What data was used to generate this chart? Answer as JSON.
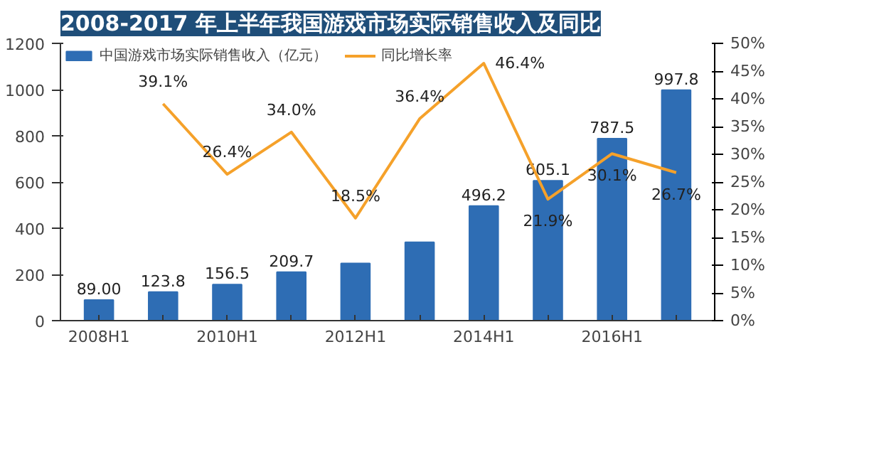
{
  "chart_data": {
    "type": "bar",
    "title": "2008-2017 年上半年我国游戏市场实际销售收入及同比",
    "categories": [
      "2008H1",
      null,
      "2010H1",
      null,
      "2012H1",
      null,
      "2014H1",
      null,
      "2016H1",
      null
    ],
    "series": [
      {
        "name": "中国游戏市场实际销售收入（亿元）",
        "color": "#2e6db4",
        "values": [
          89.0,
          123.8,
          156.5,
          209.7,
          248,
          339,
          496.2,
          605.1,
          787.5,
          997.8
        ],
        "value_labels": [
          "89.00",
          "123.8",
          "156.5",
          "209.7",
          null,
          null,
          "496.2",
          "605.1",
          "787.5",
          "997.8"
        ]
      },
      {
        "name": "同比增长率",
        "type": "line",
        "axis": "y2",
        "color": "#f5a12a",
        "values": [
          null,
          39.1,
          26.4,
          34.0,
          18.5,
          36.4,
          46.4,
          21.9,
          30.1,
          26.7
        ],
        "value_labels": [
          null,
          "39.1%",
          "26.4%",
          "34.0%",
          "18.5%",
          "36.4%",
          "46.4%",
          "21.9%",
          "30.1%",
          "26.7%"
        ]
      }
    ],
    "ylim": [
      0,
      1200
    ],
    "yticks": [
      0,
      200,
      400,
      600,
      800,
      1000,
      1200
    ],
    "y2lim": [
      0,
      50
    ],
    "y2ticks": [
      {
        "value": 0,
        "label": "0%"
      },
      {
        "value": 5,
        "label": "5%"
      },
      {
        "value": 10,
        "label": "10%"
      },
      {
        "value": 15,
        "label": "15%"
      },
      {
        "value": 20,
        "label": "20%"
      },
      {
        "value": 25,
        "label": "25%"
      },
      {
        "value": 30,
        "label": "30%"
      },
      {
        "value": 35,
        "label": "35%"
      },
      {
        "value": 40,
        "label": "40%"
      },
      {
        "value": 45,
        "label": "45%"
      },
      {
        "value": 50,
        "label": "50%"
      }
    ],
    "legend": "top",
    "grid": false,
    "marker": "none"
  }
}
